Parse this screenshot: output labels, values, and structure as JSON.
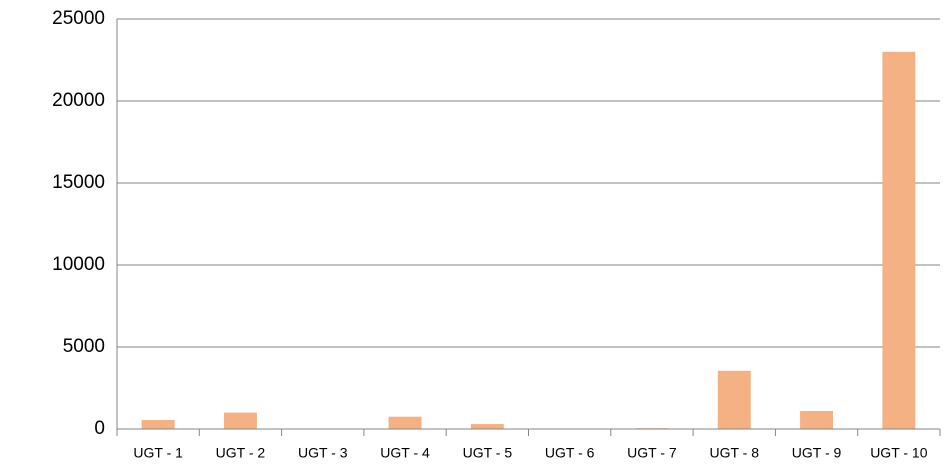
{
  "chart_data": {
    "type": "bar",
    "categories": [
      "UGT - 1",
      "UGT - 2",
      "UGT - 3",
      "UGT - 4",
      "UGT - 5",
      "UGT - 6",
      "UGT - 7",
      "UGT - 8",
      "UGT - 9",
      "UGT - 10"
    ],
    "values": [
      550,
      1000,
      0,
      750,
      300,
      0,
      50,
      3550,
      1100,
      23000
    ],
    "color": "#f4b183",
    "ylim": [
      0,
      25000
    ],
    "yticks": [
      0,
      5000,
      10000,
      15000,
      20000,
      25000
    ],
    "grid": true
  }
}
